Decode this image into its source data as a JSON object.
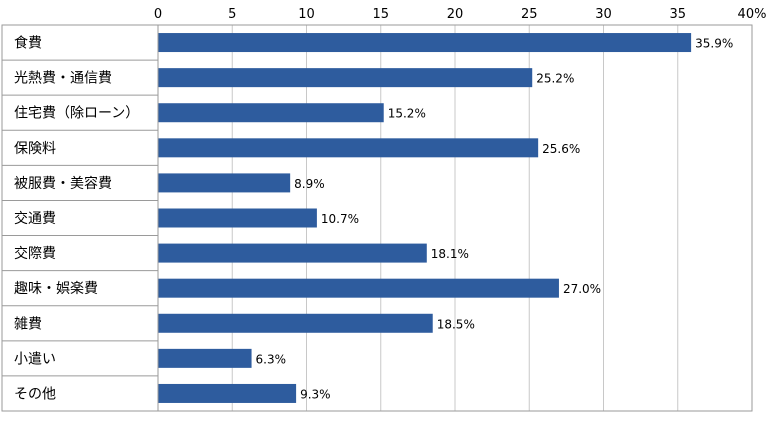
{
  "chart_data": {
    "type": "bar",
    "orientation": "horizontal",
    "categories": [
      "食費",
      "光熱費・通信費",
      "住宅費（除ローン）",
      "保険料",
      "被服費・美容費",
      "交通費",
      "交際費",
      "趣味・娯楽費",
      "雑費",
      "小遣い",
      "その他"
    ],
    "values": [
      35.9,
      25.2,
      15.2,
      25.6,
      8.9,
      10.7,
      18.1,
      27.0,
      18.5,
      6.3,
      9.3
    ],
    "value_labels": [
      "35.9%",
      "25.2%",
      "15.2%",
      "25.6%",
      "8.9%",
      "10.7%",
      "18.1%",
      "27.0%",
      "18.5%",
      "6.3%",
      "9.3%"
    ],
    "xlim": [
      0,
      40
    ],
    "x_ticks": [
      "0",
      "5",
      "10",
      "15",
      "20",
      "25",
      "30",
      "35",
      "40%"
    ],
    "grid": true,
    "bar_color": "#2e5c9e"
  }
}
